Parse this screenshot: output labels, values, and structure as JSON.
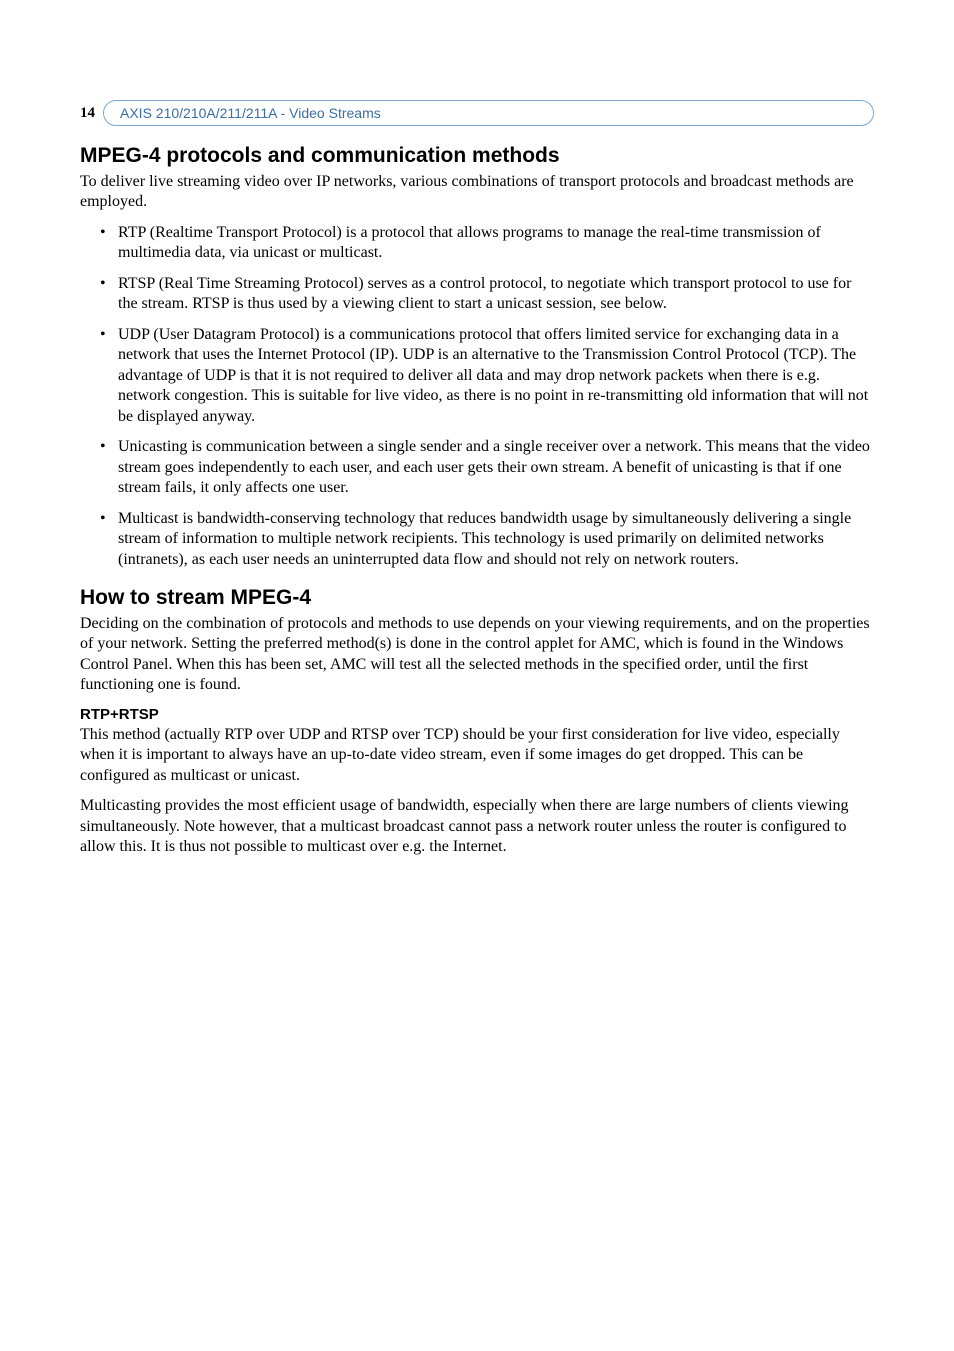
{
  "page_number": "14",
  "header_breadcrumb": "AXIS 210/210A/211/211A - Video Streams",
  "colors": {
    "header_border": "#7ba7d7",
    "header_text": "#3a6ea5",
    "body_text": "#000000",
    "background": "#ffffff"
  },
  "section1": {
    "title": "MPEG-4 protocols and communication methods",
    "intro": "To deliver live streaming video over IP networks, various combinations of transport protocols and broadcast methods are employed.",
    "bullets": [
      "RTP (Realtime Transport Protocol) is a protocol that allows programs to manage the real-time transmission of multimedia data, via unicast or multicast.",
      "RTSP (Real Time Streaming Protocol) serves as a control protocol, to negotiate which transport protocol to use for the stream. RTSP is thus used by a viewing client to start a unicast session, see below.",
      "UDP (User Datagram Protocol) is a communications protocol that offers limited service for exchanging data in a network that uses the Internet Protocol (IP). UDP is an alternative to the Transmission Control Protocol (TCP). The advantage of UDP is that it is not required to deliver all data and may drop network packets when there is e.g. network congestion. This is suitable for live video, as there is no point in re-transmitting old information that will not be displayed anyway.",
      "Unicasting is communication between a single sender and a single receiver over a network. This means that the video stream goes independently to each user, and each user gets their own stream. A benefit of unicasting is that if one stream fails, it only affects one user.",
      "Multicast is bandwidth-conserving technology that reduces bandwidth usage by simultaneously delivering a single stream of information to multiple network recipients. This technology is used primarily on delimited networks (intranets), as each user needs an uninterrupted data flow and should not rely on network routers."
    ]
  },
  "section2": {
    "title": "How to stream MPEG-4",
    "intro": "Deciding on the combination of protocols and methods to use depends on your viewing requirements, and on the properties of your network. Setting the preferred method(s) is done in the control applet for AMC, which is found in the Windows Control Panel. When this has been set, AMC will test all the selected methods in the specified order, until the first functioning one is found.",
    "subhead": "RTP+RTSP",
    "para1": "This method (actually RTP over UDP and RTSP over TCP) should be your first consideration for live video, especially when it is important to always have an up-to-date video stream, even if some images do get dropped. This can be configured as multicast or unicast.",
    "para2": "Multicasting provides the most efficient usage of bandwidth, especially when there are large numbers of clients viewing simultaneously. Note however, that a multicast broadcast cannot pass a network router unless the router is configured to allow this. It is thus not possible to multicast over e.g. the Internet."
  }
}
